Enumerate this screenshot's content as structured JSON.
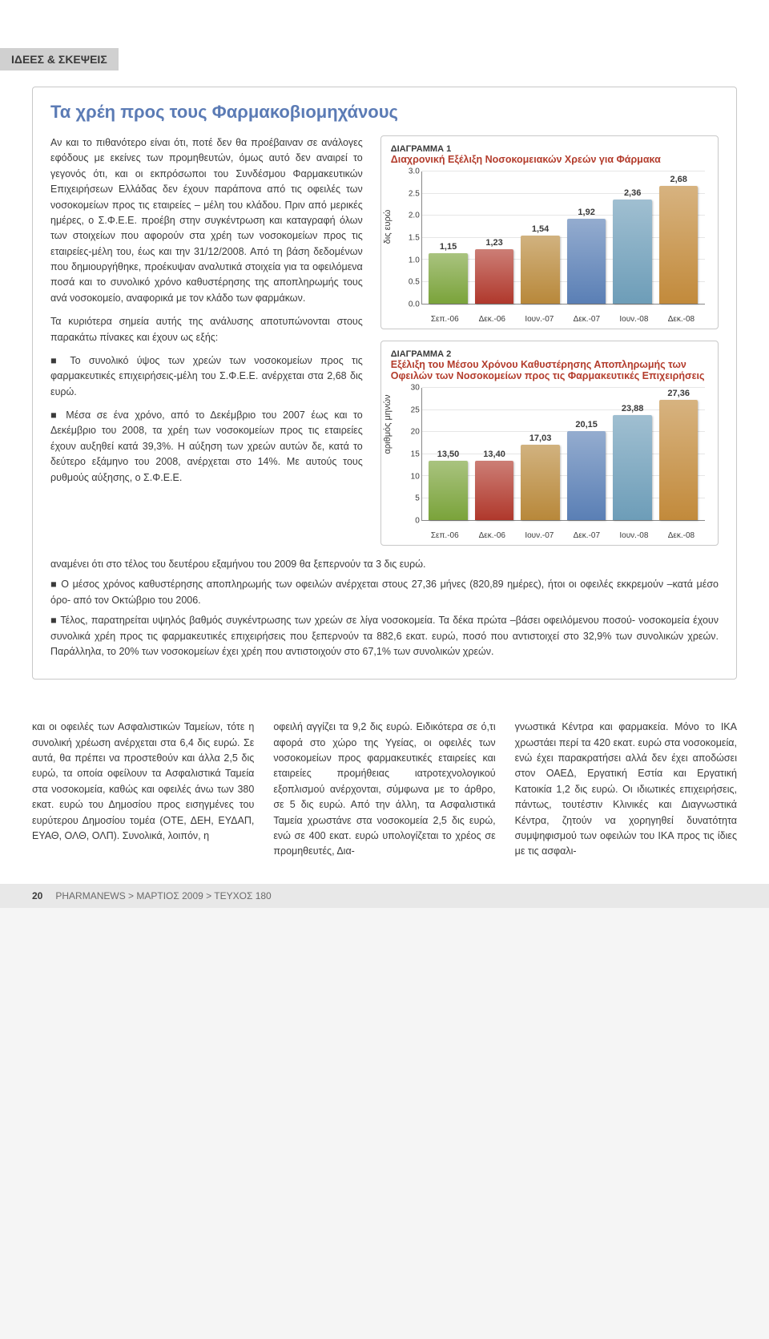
{
  "header_tag": "ΙΔΕΕΣ & ΣΚΕΨΕΙΣ",
  "box_title": "Τα χρέη προς τους Φαρμακοβιομηχάνους",
  "paragraphs": {
    "p1": "Αν και το πιθανότερο είναι ότι, ποτέ δεν θα προέβαιναν σε ανάλογες εφόδους με εκείνες των προμηθευτών, όμως αυτό δεν αναιρεί το γεγονός ότι, και οι εκπρόσωποι του Συνδέσμου Φαρμακευτικών Επιχειρήσεων Ελλάδας δεν έχουν παράπονα από τις οφειλές των νοσοκομείων προς τις εταιρείες – μέλη του κλάδου. Πριν από μερικές ημέρες, ο Σ.Φ.Ε.Ε. προέβη στην συγκέντρωση και καταγραφή όλων των στοιχείων που αφορούν στα χρέη των νοσοκομείων προς τις εταιρείες-μέλη του, έως και την 31/12/2008. Από τη βάση δεδομένων που δημιουργήθηκε, προέκυψαν αναλυτικά στοιχεία για τα οφειλόμενα ποσά και το συνολικό χρόνο καθυστέρησης της αποπληρωμής τους ανά νοσοκομείο, αναφορικά με τον κλάδο των φαρμάκων.",
    "p2": "Τα κυριότερα σημεία αυτής της ανάλυσης αποτυπώνονται στους παρακάτω πίνακες και έχουν ως εξής:",
    "p3": "Το συνολικό ύψος των χρεών των νοσοκομείων προς τις φαρμακευτικές επιχειρήσεις-μέλη του Σ.Φ.Ε.Ε. ανέρχεται στα 2,68 δις ευρώ.",
    "p4": "Μέσα σε ένα χρόνο, από το Δεκέμβριο του 2007 έως και το Δεκέμβριο του 2008, τα χρέη των νοσοκομείων προς τις εταιρείες έχουν αυξηθεί κατά 39,3%. Η αύξηση των χρεών αυτών δε, κατά το δεύτερο εξάμηνο του 2008, ανέρχεται στο 14%. Με αυτούς τους ρυθμούς αύξησης, ο Σ.Φ.Ε.Ε."
  },
  "below": {
    "b1": "αναμένει ότι στο τέλος του δευτέρου εξαμήνου του 2009 θα ξεπερνούν τα 3 δις ευρώ.",
    "b2": "Ο μέσος χρόνος καθυστέρησης αποπληρωμής των οφειλών ανέρχεται στους 27,36 μήνες (820,89 ημέρες), ήτοι οι οφειλές εκκρεμούν –κατά μέσο όρο- από τον Οκτώβριο του 2006.",
    "b3": "Τέλος, παρατηρείται υψηλός βαθμός συγκέντρωσης των χρεών σε λίγα νοσοκομεία. Τα δέκα πρώτα –βάσει οφειλόμενου ποσού- νοσοκομεία έχουν συνολικά χρέη προς τις φαρμακευτικές επιχειρήσεις που ξεπερνούν τα 882,6 εκατ. ευρώ, ποσό που αντιστοιχεί στο 32,9% των συνολικών χρεών. Παράλληλα, το 20% των νοσοκομείων έχει χρέη που αντιστοιχούν στο 67,1% των συνολικών χρεών."
  },
  "bottom_cols": {
    "c1": "και οι οφειλές των Ασφαλιστικών Ταμείων, τότε η συνολική χρέωση ανέρχεται στα 6,4 δις ευρώ. Σε αυτά, θα πρέπει να προστεθούν και άλλα 2,5 δις ευρώ, τα οποία οφείλουν τα Ασφαλιστικά Ταμεία στα νοσοκομεία, καθώς και οφειλές άνω των 380 εκατ. ευρώ του Δημοσίου προς εισηγμένες του ευρύτερου Δημοσίου τομέα (ΟΤΕ, ΔΕΗ, ΕΥΔΑΠ, ΕΥΑΘ, ΟΛΘ, ΟΛΠ). Συνολικά, λοιπόν, η",
    "c2": "οφειλή αγγίζει τα 9,2 δις ευρώ. Ειδικότερα σε ό,τι αφορά στο χώρο της Υγείας, οι οφειλές των νοσοκομείων προς φαρμακευτικές εταιρείες και εταιρείες προμήθειας ιατροτεχνολογικού εξοπλισμού ανέρχονται, σύμφωνα με το άρθρο, σε 5 δις ευρώ. Από την άλλη, τα Ασφαλιστικά Ταμεία χρωστάνε στα νοσοκομεία 2,5 δις ευρώ, ενώ σε 400 εκατ. ευρώ υπολογίζεται το χρέος σε προμηθευτές, Δια-",
    "c3": "γνωστικά Κέντρα και φαρμακεία. Μόνο το ΙΚΑ χρωστάει περί τα 420 εκατ. ευρώ στα νοσοκομεία, ενώ έχει παρακρατήσει αλλά δεν έχει αποδώσει στον ΟΑΕΔ, Εργατική Εστία και Εργατική Κατοικία 1,2 δις ευρώ. Οι ιδιωτικές επιχειρήσεις, πάντως, τουτέστιν Κλινικές και Διαγνωστικά Κέντρα, ζητούν να χορηγηθεί δυνατότητα συμψηφισμού των οφειλών του ΙΚΑ προς τις ίδιες με τις ασφαλι-"
  },
  "chart1": {
    "type": "bar",
    "label": "ΔΙΑΓΡΑΜΜΑ 1",
    "title": "Διαχρονική Εξέλιξη Νοσοκομειακών Χρεών για Φάρμακα",
    "y_label": "δις ευρώ",
    "ymax": 3.0,
    "yticks": [
      "0.0",
      "0.5",
      "1.0",
      "1.5",
      "2.0",
      "2.5",
      "3.0"
    ],
    "categories": [
      "Σεπ.-06",
      "Δεκ.-06",
      "Ιουν.-07",
      "Δεκ.-07",
      "Ιουν.-08",
      "Δεκ.-08"
    ],
    "values": [
      1.15,
      1.23,
      1.54,
      1.92,
      2.36,
      2.68
    ],
    "value_strings": [
      "1,15",
      "1,23",
      "1,54",
      "1,92",
      "2,36",
      "2,68"
    ],
    "bar_colors": [
      "#7aa33a",
      "#b0382c",
      "#b8883a",
      "#5a7fb5",
      "#6d9db8",
      "#c28a3b"
    ]
  },
  "chart2": {
    "type": "bar",
    "label": "ΔΙΑΓΡΑΜΜΑ 2",
    "title": "Εξέλιξη του Μέσου Χρόνου Καθυστέρησης Αποπληρωμής των Οφειλών των Νοσοκομείων προς τις Φαρμακευτικές Επιχειρήσεις",
    "y_label": "αριθμός μηνών",
    "ymax": 30,
    "yticks": [
      "0",
      "5",
      "10",
      "15",
      "20",
      "25",
      "30"
    ],
    "categories": [
      "Σεπ.-06",
      "Δεκ.-06",
      "Ιουν.-07",
      "Δεκ.-07",
      "Ιουν.-08",
      "Δεκ.-08"
    ],
    "values": [
      13.5,
      13.4,
      17.03,
      20.15,
      23.88,
      27.36
    ],
    "value_strings": [
      "13,50",
      "13,40",
      "17,03",
      "20,15",
      "23,88",
      "27,36"
    ],
    "bar_colors": [
      "#7aa33a",
      "#b0382c",
      "#b8883a",
      "#5a7fb5",
      "#6d9db8",
      "#c28a3b"
    ]
  },
  "footer": {
    "page": "20",
    "rest": "PHARMANEWS > ΜΑΡΤΙΟΣ 2009 > ΤΕΥΧΟΣ 180"
  }
}
